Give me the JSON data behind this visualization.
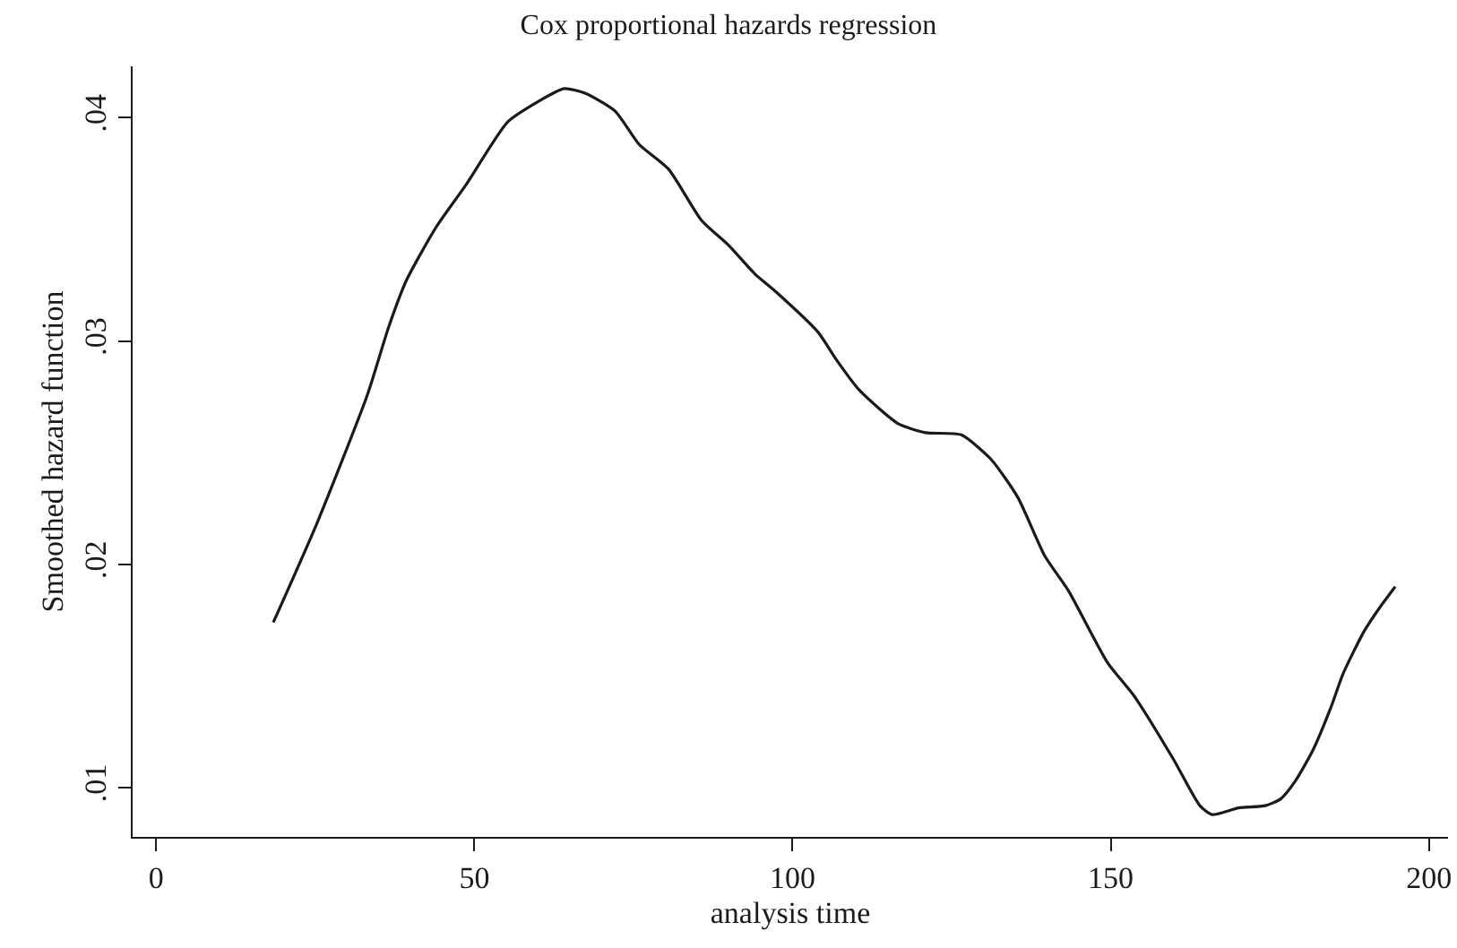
{
  "chart_data": {
    "type": "line",
    "title": "Cox proportional hazards regression",
    "xlabel": "analysis time",
    "ylabel": "Smoothed hazard function",
    "x": [
      18.4,
      25.2,
      33.2,
      36.5,
      39.3,
      44.0,
      48.7,
      55.2,
      59.9,
      64.1,
      67.4,
      72.1,
      75.9,
      80.5,
      85.7,
      89.9,
      94.1,
      97.4,
      104.0,
      106.8,
      110.5,
      116.6,
      120.9,
      126.5,
      131.2,
      135.4,
      139.6,
      143.4,
      149.5,
      153.7,
      159.8,
      164.0,
      165.9,
      170.1,
      174.3,
      176.7,
      179.0,
      181.8,
      184.6,
      186.5,
      189.8,
      192.1,
      194.7
    ],
    "series": [
      {
        "color": "#1a1a1a",
        "values": [
          0.0174,
          0.0218,
          0.0276,
          0.0306,
          0.0327,
          0.0351,
          0.037,
          0.0398,
          0.0407,
          0.0413,
          0.0411,
          0.0403,
          0.0388,
          0.0377,
          0.0354,
          0.0343,
          0.033,
          0.0322,
          0.0304,
          0.0292,
          0.0278,
          0.0263,
          0.0259,
          0.0258,
          0.0247,
          0.023,
          0.0204,
          0.0188,
          0.0156,
          0.0141,
          0.0113,
          0.0092,
          0.0088,
          0.0091,
          0.0092,
          0.0095,
          0.0103,
          0.0117,
          0.0136,
          0.0151,
          0.017,
          0.018,
          0.019
        ]
      }
    ],
    "xlim": [
      -3.7,
      203
    ],
    "xticks": [
      0,
      50,
      100,
      150,
      200
    ],
    "ylim": [
      0.0078,
      0.0423
    ],
    "yticks": [
      {
        "value": 0.01,
        "label": ".01"
      },
      {
        "value": 0.02,
        "label": ".02"
      },
      {
        "value": 0.03,
        "label": ".03"
      },
      {
        "value": 0.04,
        "label": ".04"
      }
    ],
    "marker": "none",
    "line_style": "solid"
  }
}
